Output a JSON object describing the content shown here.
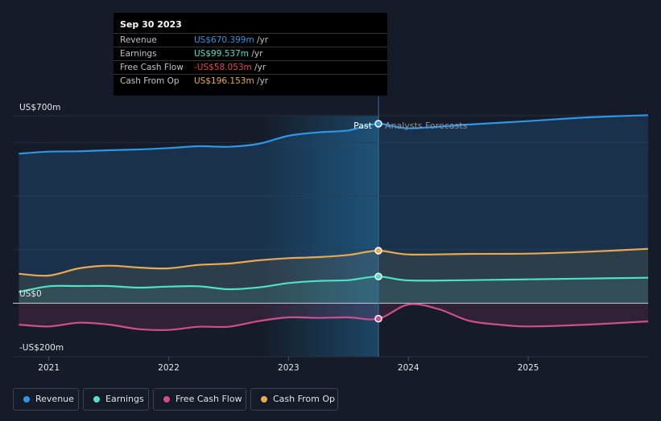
{
  "chart_data": {
    "type": "line",
    "y_tick_labels": [
      "US$700m",
      "US$0",
      "-US$200m"
    ],
    "x_tick_labels": [
      "2021",
      "2022",
      "2023",
      "2024",
      "2025"
    ],
    "ylim": [
      -200,
      700
    ],
    "past_label": "Past",
    "forecast_label": "Analysts Forecasts",
    "legend_placement": "bottom-left",
    "series": [
      {
        "name": "Revenue",
        "color": "#2d97e6",
        "x": [
          2020.75,
          2021.0,
          2021.25,
          2021.5,
          2021.75,
          2022.0,
          2022.25,
          2022.5,
          2022.75,
          2023.0,
          2023.25,
          2023.5,
          2023.75,
          2024.0,
          2024.5,
          2025.0,
          2025.5,
          2026.0
        ],
        "values": [
          558,
          566,
          567,
          571,
          574,
          579,
          586,
          584,
          595,
          625,
          638,
          645,
          670,
          653,
          667,
          680,
          694,
          702
        ]
      },
      {
        "name": "Earnings",
        "color": "#4fe0c8",
        "x": [
          2020.75,
          2021.0,
          2021.25,
          2021.5,
          2021.75,
          2022.0,
          2022.25,
          2022.5,
          2022.75,
          2023.0,
          2023.25,
          2023.5,
          2023.75,
          2024.0,
          2024.5,
          2025.0,
          2025.5,
          2026.0
        ],
        "values": [
          42,
          63,
          64,
          64,
          58,
          62,
          63,
          52,
          59,
          75,
          83,
          86,
          99.5,
          85,
          86,
          89,
          92,
          95
        ]
      },
      {
        "name": "Free Cash Flow",
        "color": "#d04d8e",
        "x": [
          2020.75,
          2021.0,
          2021.25,
          2021.5,
          2021.75,
          2022.0,
          2022.25,
          2022.5,
          2022.75,
          2023.0,
          2023.25,
          2023.5,
          2023.75,
          2024.0,
          2024.25,
          2024.5,
          2024.75,
          2025.0,
          2025.5,
          2026.0
        ],
        "values": [
          -80,
          -87,
          -73,
          -80,
          -97,
          -100,
          -88,
          -88,
          -67,
          -53,
          -55,
          -53,
          -58,
          -5,
          -22,
          -65,
          -80,
          -87,
          -80,
          -68
        ]
      },
      {
        "name": "Cash From Op",
        "color": "#e8a950",
        "x": [
          2020.75,
          2021.0,
          2021.25,
          2021.5,
          2021.75,
          2022.0,
          2022.25,
          2022.5,
          2022.75,
          2023.0,
          2023.25,
          2023.5,
          2023.75,
          2024.0,
          2024.5,
          2025.0,
          2025.5,
          2026.0
        ],
        "values": [
          110,
          103,
          130,
          140,
          133,
          130,
          143,
          148,
          160,
          168,
          172,
          180,
          196,
          182,
          184,
          185,
          192,
          203
        ]
      }
    ]
  },
  "tooltip": {
    "date": "Sep 30 2023",
    "rows": [
      {
        "label": "Revenue",
        "value": "US$670.399m",
        "unit": "/yr",
        "color": "#2d97e6"
      },
      {
        "label": "Earnings",
        "value": "US$99.537m",
        "unit": "/yr",
        "color": "#4fe0c8"
      },
      {
        "label": "Free Cash Flow",
        "value": "-US$58.053m",
        "unit": "/yr",
        "color": "#e5484d"
      },
      {
        "label": "Cash From Op",
        "value": "US$196.153m",
        "unit": "/yr",
        "color": "#e8a950"
      }
    ]
  },
  "legend": [
    {
      "label": "Revenue",
      "color": "#2d97e6"
    },
    {
      "label": "Earnings",
      "color": "#4fe0c8"
    },
    {
      "label": "Free Cash Flow",
      "color": "#d04d8e"
    },
    {
      "label": "Cash From Op",
      "color": "#e8a950"
    }
  ]
}
